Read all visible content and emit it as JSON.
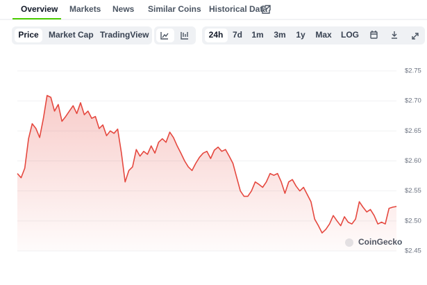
{
  "tabs": [
    "Overview",
    "Markets",
    "News",
    "Similar Coins",
    "Historical Data"
  ],
  "toolbar": {
    "views": [
      "Price",
      "Market Cap",
      "TradingView"
    ],
    "ranges": [
      "24h",
      "7d",
      "1m",
      "3m",
      "1y",
      "Max",
      "LOG"
    ]
  },
  "chart_data": {
    "type": "line",
    "color": "#e5483f",
    "grid": true,
    "watermark": "CoinGecko",
    "ylim": [
      2.45,
      2.75
    ],
    "yticks": [
      {
        "value": 2.45,
        "label": "$2.45"
      },
      {
        "value": 2.5,
        "label": "$2.50"
      },
      {
        "value": 2.55,
        "label": "$2.55"
      },
      {
        "value": 2.6,
        "label": "$2.60"
      },
      {
        "value": 2.65,
        "label": "$2.65"
      },
      {
        "value": 2.7,
        "label": "$2.70"
      },
      {
        "value": 2.75,
        "label": "$2.75"
      }
    ],
    "values": [
      2.579,
      2.572,
      2.588,
      2.637,
      2.662,
      2.654,
      2.639,
      2.671,
      2.709,
      2.706,
      2.683,
      2.694,
      2.666,
      2.674,
      2.683,
      2.692,
      2.679,
      2.697,
      2.677,
      2.683,
      2.671,
      2.674,
      2.654,
      2.66,
      2.642,
      2.65,
      2.646,
      2.653,
      2.613,
      2.565,
      2.584,
      2.59,
      2.619,
      2.608,
      2.616,
      2.611,
      2.625,
      2.613,
      2.631,
      2.637,
      2.631,
      2.648,
      2.639,
      2.625,
      2.613,
      2.6,
      2.59,
      2.584,
      2.596,
      2.606,
      2.613,
      2.616,
      2.604,
      2.618,
      2.623,
      2.616,
      2.619,
      2.608,
      2.596,
      2.573,
      2.55,
      2.541,
      2.541,
      2.55,
      2.565,
      2.561,
      2.556,
      2.565,
      2.579,
      2.576,
      2.579,
      2.565,
      2.546,
      2.565,
      2.569,
      2.558,
      2.55,
      2.556,
      2.544,
      2.532,
      2.503,
      2.492,
      2.48,
      2.486,
      2.495,
      2.509,
      2.5,
      2.492,
      2.507,
      2.498,
      2.495,
      2.503,
      2.532,
      2.523,
      2.515,
      2.519,
      2.509,
      2.495,
      2.498,
      2.495,
      2.521,
      2.523,
      2.524
    ]
  }
}
